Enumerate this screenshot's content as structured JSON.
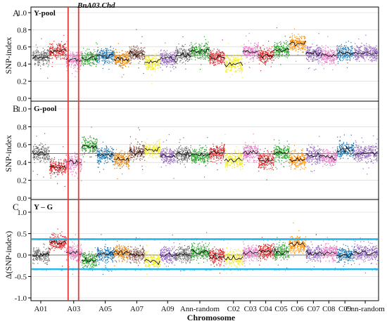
{
  "chart_data": {
    "type": "scatter",
    "marker_annotation": "BnA03.Chd",
    "xlabel": "Chromosome",
    "x_tick_labels": [
      "A01",
      "A03",
      "A05",
      "A07",
      "A09",
      "Ann-random",
      "C02",
      "C03",
      "C04",
      "C05",
      "C06",
      "C07",
      "C08",
      "C09",
      "Cnn-random"
    ],
    "chromosomes": [
      {
        "name": "A01",
        "color": "#6b6b6b"
      },
      {
        "name": "A02",
        "color": "#d62728"
      },
      {
        "name": "A03",
        "color": "#e377c2"
      },
      {
        "name": "A04",
        "color": "#2ca02c"
      },
      {
        "name": "A05",
        "color": "#1f77b4"
      },
      {
        "name": "A06",
        "color": "#e07b00"
      },
      {
        "name": "A07",
        "color": "#8c564b"
      },
      {
        "name": "A08",
        "color": "#f2ea2e"
      },
      {
        "name": "A09",
        "color": "#9467bd"
      },
      {
        "name": "A10",
        "color": "#6b6b6b"
      },
      {
        "name": "Ann-random",
        "color": "#2ca02c"
      },
      {
        "name": "C01",
        "color": "#d62728"
      },
      {
        "name": "C02",
        "color": "#f2ea2e"
      },
      {
        "name": "C03",
        "color": "#e377c2"
      },
      {
        "name": "C04",
        "color": "#d62728"
      },
      {
        "name": "C05",
        "color": "#2ca02c"
      },
      {
        "name": "C06",
        "color": "#ff8c00"
      },
      {
        "name": "C07",
        "color": "#9467bd"
      },
      {
        "name": "C08",
        "color": "#e377c2"
      },
      {
        "name": "C09",
        "color": "#1f77b4"
      },
      {
        "name": "Cnn-random",
        "color": "#9467bd"
      }
    ],
    "panels": [
      {
        "label": "A",
        "title": "Y-pool",
        "ylabel": "SNP-index",
        "yticks": [
          "0.0",
          "0.2",
          "0.4",
          "0.6",
          "0.8",
          "1.0"
        ],
        "ylim": [
          0,
          1
        ],
        "reference_line": 0.5,
        "means": [
          0.48,
          0.55,
          0.45,
          0.47,
          0.5,
          0.46,
          0.52,
          0.42,
          0.46,
          0.51,
          0.55,
          0.48,
          0.4,
          0.54,
          0.5,
          0.57,
          0.64,
          0.52,
          0.5,
          0.53,
          0.53
        ]
      },
      {
        "label": "B",
        "title": "G-pool",
        "ylabel": "SNP-index",
        "yticks": [
          "0.0",
          "0.2",
          "0.4",
          "0.6",
          "0.8",
          "1.0"
        ],
        "ylim": [
          0,
          1
        ],
        "reference_line": 0.5,
        "means": [
          0.5,
          0.35,
          0.4,
          0.58,
          0.48,
          0.43,
          0.52,
          0.55,
          0.47,
          0.49,
          0.47,
          0.51,
          0.43,
          0.51,
          0.42,
          0.51,
          0.43,
          0.48,
          0.46,
          0.54,
          0.5
        ]
      },
      {
        "label": "C",
        "title": "Y – G",
        "ylabel": "Δ(SNP-index)",
        "yticks": [
          "-1.0",
          "-0.5",
          "0.0",
          "0.5",
          "1.0"
        ],
        "ylim": [
          -1,
          1
        ],
        "reference_line": 0,
        "threshold_upper": 0.37,
        "threshold_lower": -0.33,
        "threshold_color": "#29b6e8",
        "means": [
          0.0,
          0.3,
          0.05,
          -0.12,
          0.02,
          0.05,
          0.0,
          -0.15,
          0.0,
          0.02,
          0.07,
          -0.03,
          -0.08,
          0.05,
          0.08,
          0.07,
          0.24,
          0.04,
          0.06,
          0.0,
          0.04
        ]
      }
    ],
    "highlight_color": "#e53935"
  }
}
